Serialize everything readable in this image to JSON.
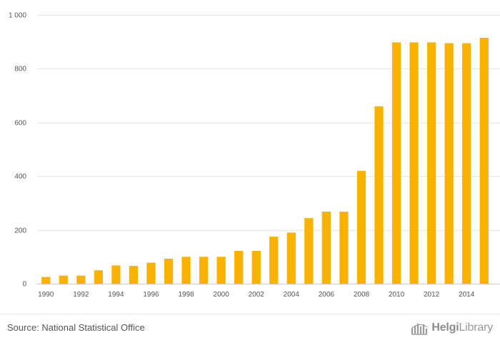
{
  "chart_data": {
    "type": "bar",
    "title": "",
    "xlabel": "",
    "ylabel": "",
    "categories": [
      "1990",
      "1991",
      "1992",
      "1993",
      "1994",
      "1995",
      "1996",
      "1997",
      "1998",
      "1999",
      "2000",
      "2001",
      "2002",
      "2003",
      "2004",
      "2005",
      "2006",
      "2007",
      "2008",
      "2009",
      "2010",
      "2011",
      "2012",
      "2013",
      "2014",
      "2015"
    ],
    "x_tick_labels": [
      "1990",
      "1992",
      "1994",
      "1996",
      "1998",
      "2000",
      "2002",
      "2004",
      "2006",
      "2008",
      "2010",
      "2012",
      "2014"
    ],
    "values": [
      25,
      30,
      30,
      50,
      68,
      66,
      78,
      93,
      100,
      100,
      100,
      122,
      122,
      175,
      190,
      244,
      268,
      268,
      420,
      660,
      898,
      898,
      898,
      895,
      895,
      915
    ],
    "ylim": [
      0,
      1000
    ],
    "y_ticks": [
      0,
      200,
      400,
      600,
      800,
      1000
    ],
    "y_tick_labels": [
      "0",
      "200",
      "400",
      "600",
      "800",
      "1 000"
    ],
    "grid": true,
    "legend": "none",
    "bar_color": "#f9b200"
  },
  "footer": {
    "source": "Source: National Statistical Office",
    "brand_name": "Helgi",
    "brand_suffix": "Library"
  },
  "colors": {
    "bar": "#f9b200",
    "grid": "#e6e6e6",
    "text": "#555555"
  }
}
